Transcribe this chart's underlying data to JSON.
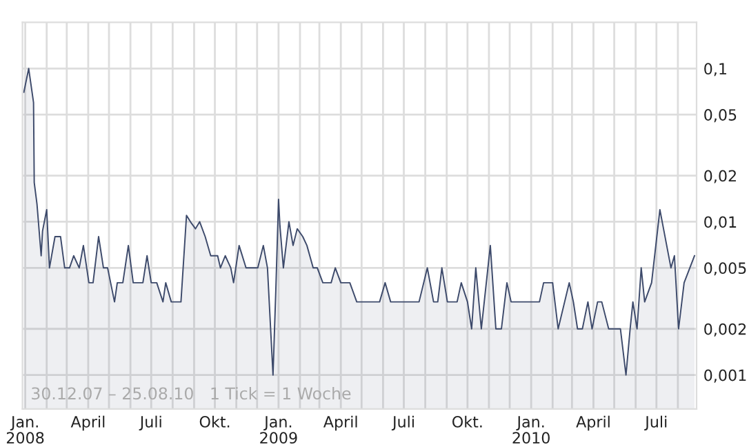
{
  "chart_data": {
    "type": "area",
    "log": "y",
    "grid": true,
    "line_style": "solid",
    "marker": "none",
    "x": [
      "2007-12-30",
      "2008-01-06",
      "2008-01-13",
      "2008-01-14",
      "2008-01-18",
      "2008-01-24",
      "2008-01-26",
      "2008-02-01",
      "2008-02-05",
      "2008-02-13",
      "2008-02-21",
      "2008-02-27",
      "2008-03-05",
      "2008-03-11",
      "2008-03-19",
      "2008-03-25",
      "2008-04-02",
      "2008-04-08",
      "2008-04-16",
      "2008-04-23",
      "2008-04-29",
      "2008-05-09",
      "2008-05-13",
      "2008-05-21",
      "2008-05-29",
      "2008-06-05",
      "2008-06-19",
      "2008-06-25",
      "2008-07-01",
      "2008-07-09",
      "2008-07-18",
      "2008-07-22",
      "2008-07-30",
      "2008-08-13",
      "2008-08-21",
      "2008-08-28",
      "2008-09-03",
      "2008-09-09",
      "2008-09-17",
      "2008-09-25",
      "2008-10-05",
      "2008-10-09",
      "2008-10-16",
      "2008-10-24",
      "2008-10-28",
      "2008-11-05",
      "2008-11-15",
      "2008-12-02",
      "2008-12-10",
      "2008-12-16",
      "2008-12-24",
      "2008-12-28",
      "2009-01-01",
      "2009-01-03",
      "2009-01-08",
      "2009-01-16",
      "2009-01-22",
      "2009-01-28",
      "2009-02-05",
      "2009-02-11",
      "2009-02-20",
      "2009-02-26",
      "2009-03-06",
      "2009-03-18",
      "2009-03-24",
      "2009-04-01",
      "2009-04-14",
      "2009-04-24",
      "2009-05-27",
      "2009-06-04",
      "2009-06-12",
      "2009-07-23",
      "2009-08-04",
      "2009-08-13",
      "2009-08-19",
      "2009-08-25",
      "2009-09-02",
      "2009-09-16",
      "2009-09-22",
      "2009-10-01",
      "2009-10-07",
      "2009-10-13",
      "2009-10-21",
      "2009-11-03",
      "2009-11-11",
      "2009-11-19",
      "2009-11-27",
      "2009-12-03",
      "2010-01-13",
      "2010-01-19",
      "2010-02-01",
      "2010-02-09",
      "2010-02-25",
      "2010-03-03",
      "2010-03-09",
      "2010-03-16",
      "2010-03-24",
      "2010-03-30",
      "2010-04-07",
      "2010-04-13",
      "2010-04-23",
      "2010-05-10",
      "2010-05-18",
      "2010-05-24",
      "2010-05-28",
      "2010-06-03",
      "2010-06-09",
      "2010-06-14",
      "2010-06-24",
      "2010-07-06",
      "2010-07-22",
      "2010-07-27",
      "2010-08-02",
      "2010-08-10",
      "2010-08-25"
    ],
    "series": [
      {
        "color": "#3d4a6b",
        "values": [
          0.07,
          0.1,
          0.06,
          0.018,
          0.013,
          0.006,
          0.0087,
          0.012,
          0.005,
          0.008,
          0.008,
          0.005,
          0.005,
          0.006,
          0.005,
          0.007,
          0.004,
          0.004,
          0.008,
          0.005,
          0.005,
          0.003,
          0.004,
          0.004,
          0.007,
          0.004,
          0.004,
          0.006,
          0.004,
          0.004,
          0.003,
          0.004,
          0.003,
          0.003,
          0.011,
          0.0098,
          0.009,
          0.01,
          0.008,
          0.006,
          0.006,
          0.005,
          0.006,
          0.005,
          0.004,
          0.007,
          0.005,
          0.005,
          0.007,
          0.005,
          0.001,
          0.0035,
          0.014,
          0.0094,
          0.005,
          0.01,
          0.007,
          0.009,
          0.008,
          0.007,
          0.005,
          0.005,
          0.004,
          0.004,
          0.005,
          0.004,
          0.004,
          0.003,
          0.003,
          0.004,
          0.003,
          0.003,
          0.005,
          0.003,
          0.003,
          0.005,
          0.003,
          0.003,
          0.004,
          0.003,
          0.002,
          0.005,
          0.002,
          0.007,
          0.002,
          0.002,
          0.004,
          0.003,
          0.003,
          0.004,
          0.004,
          0.002,
          0.004,
          0.003,
          0.002,
          0.002,
          0.003,
          0.002,
          0.003,
          0.003,
          0.002,
          0.002,
          0.001,
          0.002,
          0.003,
          0.002,
          0.005,
          0.003,
          0.004,
          0.012,
          0.005,
          0.006,
          0.002,
          0.004,
          0.006
        ]
      }
    ],
    "xlim": [
      "2007-12-28",
      "2010-08-28"
    ],
    "xticks": [
      {
        "value": "2008-01-01",
        "label": "Jan.\n2008"
      },
      {
        "value": "2008-02-01",
        "label": null
      },
      {
        "value": "2008-03-01",
        "label": null
      },
      {
        "value": "2008-04-01",
        "label": "April"
      },
      {
        "value": "2008-05-01",
        "label": null
      },
      {
        "value": "2008-06-01",
        "label": null
      },
      {
        "value": "2008-07-01",
        "label": "Juli"
      },
      {
        "value": "2008-08-01",
        "label": null
      },
      {
        "value": "2008-09-01",
        "label": null
      },
      {
        "value": "2008-10-01",
        "label": "Okt."
      },
      {
        "value": "2008-11-01",
        "label": null
      },
      {
        "value": "2008-12-01",
        "label": null
      },
      {
        "value": "2009-01-01",
        "label": "Jan.\n2009"
      },
      {
        "value": "2009-02-01",
        "label": null
      },
      {
        "value": "2009-03-01",
        "label": null
      },
      {
        "value": "2009-04-01",
        "label": "April"
      },
      {
        "value": "2009-05-01",
        "label": null
      },
      {
        "value": "2009-06-01",
        "label": null
      },
      {
        "value": "2009-07-01",
        "label": "Juli"
      },
      {
        "value": "2009-08-01",
        "label": null
      },
      {
        "value": "2009-09-01",
        "label": null
      },
      {
        "value": "2009-10-01",
        "label": "Okt."
      },
      {
        "value": "2009-11-01",
        "label": null
      },
      {
        "value": "2009-12-01",
        "label": null
      },
      {
        "value": "2010-01-01",
        "label": "Jan.\n2010"
      },
      {
        "value": "2010-02-01",
        "label": null
      },
      {
        "value": "2010-03-01",
        "label": null
      },
      {
        "value": "2010-04-01",
        "label": "April"
      },
      {
        "value": "2010-05-01",
        "label": null
      },
      {
        "value": "2010-06-01",
        "label": null
      },
      {
        "value": "2010-07-01",
        "label": "Juli"
      },
      {
        "value": "2010-08-01",
        "label": null
      }
    ],
    "ylim": [
      0.0006,
      0.2
    ],
    "yticks": [
      {
        "value": 0.001,
        "label": "0,001"
      },
      {
        "value": 0.002,
        "label": "0,002"
      },
      {
        "value": 0.005,
        "label": "0,005"
      },
      {
        "value": 0.01,
        "label": "0,01"
      },
      {
        "value": 0.02,
        "label": "0,02"
      },
      {
        "value": 0.05,
        "label": "0,05"
      },
      {
        "value": 0.1,
        "label": "0,1"
      }
    ],
    "annotations": [
      "30.12.07 – 25.08.10   1 Tick = 1 Woche"
    ]
  }
}
